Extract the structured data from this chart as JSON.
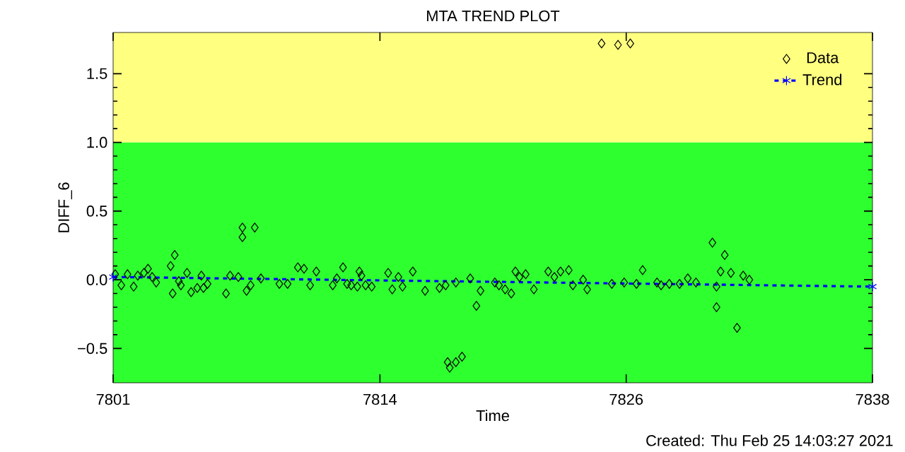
{
  "chart_data": {
    "type": "scatter",
    "title": "MTA TREND PLOT",
    "xlabel": "Time",
    "ylabel": "DIFF_6",
    "annotations": [
      "Created: Thu Feb 25 14:03:27 2021"
    ],
    "xlim": [
      7801,
      7838
    ],
    "ylim": [
      -0.75,
      1.8
    ],
    "xticks": [
      7801,
      7814,
      7826,
      7838
    ],
    "yticks": [
      {
        "value": -0.5,
        "label": "−0.5"
      },
      {
        "value": 0,
        "label": "0.0"
      },
      {
        "value": 0.5,
        "label": "0.5"
      },
      {
        "value": 1,
        "label": "1.0"
      },
      {
        "value": 1.5,
        "label": "1.5"
      }
    ],
    "bands": [
      {
        "axis": "y",
        "from": -0.75,
        "to": 1.0,
        "color": "#2eff2e"
      },
      {
        "axis": "y",
        "from": 1.0,
        "to": 1.8,
        "color": "#ffff80"
      }
    ],
    "legend": "top right",
    "series": [
      {
        "name": "Data",
        "color": "#000000",
        "marker": "diamond",
        "x": [
          7801.1,
          7801.4,
          7801.7,
          7802.0,
          7802.2,
          7802.5,
          7802.7,
          7802.9,
          7803.1,
          7803.8,
          7804.0,
          7803.9,
          7804.2,
          7804.3,
          7804.6,
          7804.8,
          7805.1,
          7805.3,
          7805.4,
          7805.6,
          7806.5,
          7806.7,
          7807.1,
          7807.3,
          7807.3,
          7807.9,
          7807.5,
          7807.7,
          7808.2,
          7809.1,
          7809.5,
          7810.0,
          7810.3,
          7810.6,
          7810.9,
          7811.7,
          7811.9,
          7812.2,
          7812.4,
          7812.6,
          7812.9,
          7813.0,
          7813.1,
          7813.3,
          7813.6,
          7814.4,
          7814.6,
          7814.9,
          7815.1,
          7815.6,
          7816.2,
          7816.9,
          7817.2,
          7817.3,
          7817.4,
          7817.7,
          7818.0,
          7817.7,
          7818.4,
          7818.7,
          7818.9,
          7819.6,
          7819.8,
          7820.1,
          7820.4,
          7820.6,
          7820.8,
          7821.1,
          7821.5,
          7822.2,
          7822.5,
          7822.8,
          7823.2,
          7823.4,
          7823.9,
          7824.1,
          7824.8,
          7825.6,
          7826.2,
          7825.3,
          7825.9,
          7826.5,
          7826.8,
          7827.5,
          7827.7,
          7828.1,
          7828.6,
          7829.0,
          7829.4,
          7830.2,
          7830.4,
          7830.4,
          7830.6,
          7830.8,
          7831.1,
          7831.4,
          7831.7,
          7832.0
        ],
        "values": [
          0.04,
          -0.04,
          0.04,
          -0.05,
          0.03,
          0.05,
          0.08,
          0.02,
          -0.02,
          0.1,
          0.18,
          -0.1,
          -0.01,
          -0.04,
          0.05,
          -0.09,
          -0.06,
          0.03,
          -0.06,
          -0.03,
          -0.1,
          0.03,
          0.02,
          0.31,
          0.38,
          0.38,
          -0.08,
          -0.04,
          0.01,
          -0.03,
          -0.03,
          0.09,
          0.08,
          -0.04,
          0.06,
          -0.04,
          0.01,
          0.09,
          -0.03,
          -0.04,
          -0.05,
          0.06,
          0.03,
          -0.04,
          -0.05,
          0.05,
          -0.07,
          0.02,
          -0.05,
          0.06,
          -0.08,
          -0.06,
          -0.04,
          -0.6,
          -0.64,
          -0.6,
          -0.56,
          -0.02,
          0.01,
          -0.19,
          -0.08,
          -0.02,
          -0.04,
          -0.07,
          -0.1,
          0.06,
          0.02,
          0.04,
          -0.07,
          0.06,
          0.02,
          0.06,
          0.07,
          -0.04,
          0.0,
          -0.07,
          1.72,
          1.71,
          1.72,
          -0.03,
          -0.02,
          -0.03,
          0.07,
          -0.02,
          -0.04,
          -0.03,
          -0.03,
          0.01,
          -0.02,
          0.27,
          -0.2,
          -0.05,
          0.06,
          0.18,
          0.05,
          -0.35,
          0.03,
          0.0
        ]
      },
      {
        "name": "Trend",
        "type": "line",
        "color": "#0000ff",
        "marker": "cross",
        "line_style": "dashed",
        "x": [
          7801,
          7838
        ],
        "values": [
          0.02,
          -0.05
        ]
      }
    ]
  }
}
